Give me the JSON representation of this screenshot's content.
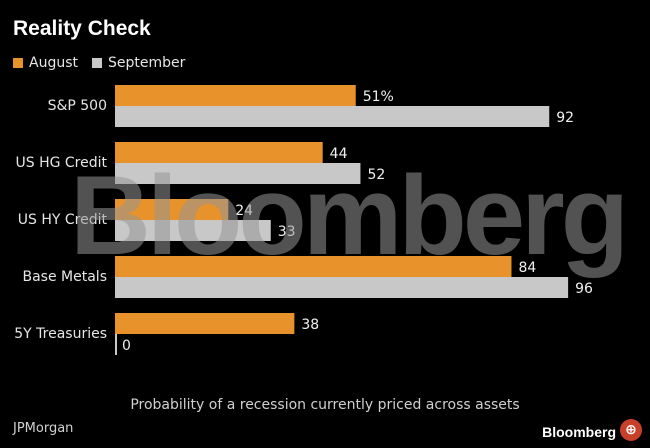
{
  "header": {
    "title": "Reality Check"
  },
  "legend": [
    {
      "label": "August",
      "color": "#e8922b"
    },
    {
      "label": "September",
      "color": "#c8c8c8"
    }
  ],
  "chart_data": {
    "type": "bar",
    "orientation": "horizontal",
    "title": "Reality Check",
    "categories": [
      "S&P 500",
      "US HG Credit",
      "US HY Credit",
      "Base Metals",
      "5Y Treasuries"
    ],
    "series": [
      {
        "name": "August",
        "values": [
          51,
          44,
          24,
          84,
          38
        ],
        "labels": [
          "51%",
          "44",
          "24",
          "84",
          "38"
        ],
        "color": "#e8922b"
      },
      {
        "name": "September",
        "values": [
          92,
          52,
          33,
          96,
          0
        ],
        "labels": [
          "92",
          "52",
          "33",
          "96",
          "0"
        ],
        "color": "#c8c8c8"
      }
    ],
    "xlim": [
      0,
      100
    ],
    "grid": false,
    "legend_position": "top-left"
  },
  "watermark": "Bloomberg",
  "caption": "Probability of a recession currently priced across assets",
  "source": "JPMorgan",
  "brand": "Bloomberg",
  "zoom_icon": "zoom-in-icon"
}
